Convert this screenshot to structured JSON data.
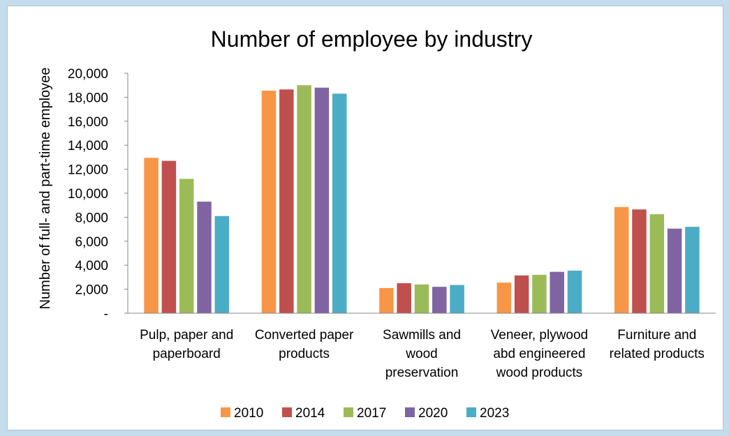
{
  "chart_data": {
    "type": "bar",
    "title": "Number of employee by industry",
    "xlabel": "",
    "ylabel": "Number of full- and part-time employee",
    "ylim": [
      0,
      20000
    ],
    "yticks": [
      "-",
      "2,000",
      "4,000",
      "6,000",
      "8,000",
      "10,000",
      "12,000",
      "14,000",
      "16,000",
      "18,000",
      "20,000"
    ],
    "categories": [
      [
        "Pulp, paper and",
        "paperboard"
      ],
      [
        "Converted paper",
        "products"
      ],
      [
        "Sawmills and",
        "wood",
        "preservation"
      ],
      [
        "Veneer, plywood",
        "abd engineered",
        "wood products"
      ],
      [
        "Furniture and",
        "related products"
      ]
    ],
    "series": [
      {
        "name": "2010",
        "color": "#f79646",
        "values": [
          12950,
          18550,
          2100,
          2550,
          8850
        ]
      },
      {
        "name": "2014",
        "color": "#c0504d",
        "values": [
          12700,
          18650,
          2500,
          3150,
          8650
        ]
      },
      {
        "name": "2017",
        "color": "#9bbb59",
        "values": [
          11200,
          19000,
          2400,
          3200,
          8250
        ]
      },
      {
        "name": "2020",
        "color": "#8064a2",
        "values": [
          9300,
          18800,
          2200,
          3450,
          7050
        ]
      },
      {
        "name": "2023",
        "color": "#4bacc6",
        "values": [
          8100,
          18300,
          2350,
          3550,
          7200
        ]
      }
    ],
    "grid": false,
    "legend": "bottom"
  }
}
